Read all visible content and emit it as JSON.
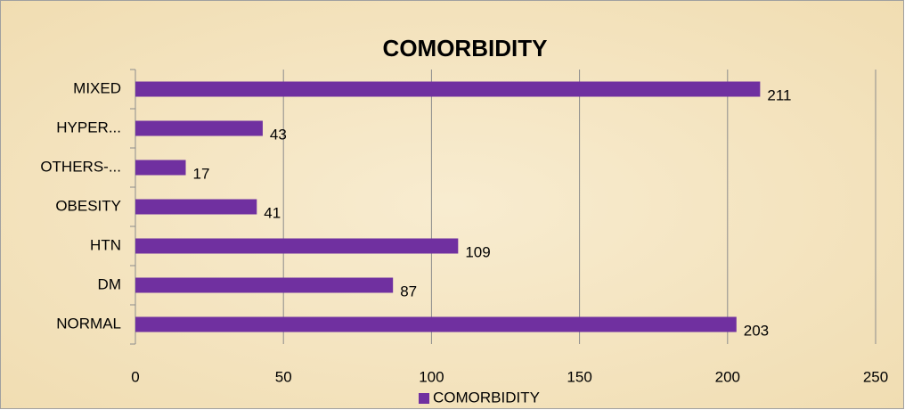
{
  "chart_data": {
    "type": "bar",
    "orientation": "horizontal",
    "title": "COMORBIDITY",
    "categories": [
      "NORMAL",
      "DM",
      "HTN",
      "OBESITY",
      "OTHERS-...",
      "HYPER...",
      "MIXED"
    ],
    "series": [
      {
        "name": "COMORBIDITY",
        "color": "#7030a0",
        "values": [
          203,
          87,
          109,
          41,
          17,
          43,
          211
        ]
      }
    ],
    "xlim": [
      0,
      250
    ],
    "xticks": [
      0,
      50,
      100,
      150,
      200,
      250
    ],
    "grid": true,
    "legend": "bottom"
  }
}
